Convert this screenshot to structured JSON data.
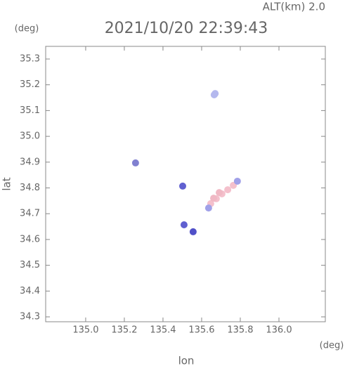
{
  "chart_data": {
    "type": "scatter",
    "title": "2021/10/20 22:39:43",
    "subtitle": "ALT(km) 2.0",
    "y_unit": "(deg)",
    "x_unit": "(deg)",
    "xlabel": "lon",
    "ylabel": "lat",
    "x": [
      135.665,
      135.67,
      135.258,
      135.502,
      135.509,
      135.556,
      135.647,
      135.676,
      135.705,
      135.735,
      135.764,
      135.662,
      135.691,
      135.785,
      135.636
    ],
    "values": [
      35.161,
      35.166,
      34.897,
      34.807,
      34.657,
      34.63,
      34.739,
      34.758,
      34.777,
      34.793,
      34.81,
      34.76,
      34.782,
      34.826,
      34.722
    ],
    "colors": [
      "#b4b8ee",
      "#b4b8ee",
      "#8080d0",
      "#6060d0",
      "#6060d0",
      "#5050c8",
      "#f4c0cc",
      "#f4c0cc",
      "#f4c0cc",
      "#f4c0cc",
      "#f4c0cc",
      "#f0b8c4",
      "#f0b8c4",
      "#a0a0e8",
      "#a0a0e8"
    ],
    "xlim": [
      134.793,
      136.24
    ],
    "ylim": [
      34.281,
      35.349
    ],
    "xticks": [
      {
        "value": 135,
        "label": "135.0"
      },
      135.2,
      135.4,
      135.6,
      135.8,
      {
        "value": 136,
        "label": "136.0"
      }
    ],
    "yticks": [
      35.3,
      35.2,
      35.1,
      {
        "value": 35,
        "label": "35.0"
      },
      34.9,
      34.8,
      34.7,
      34.6,
      34.5,
      34.4,
      34.3
    ]
  }
}
